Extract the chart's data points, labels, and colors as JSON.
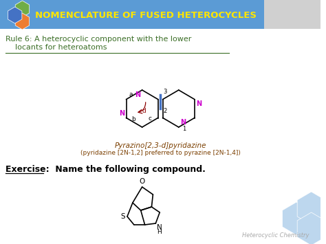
{
  "title": "NOMENCLATURE OF FUSED HETEROCYCLES",
  "title_color": "#FFE600",
  "header_bg": "#5B9BD5",
  "rule_line1": "Rule 6: A heterocyclic component with the lower",
  "rule_line2": "    locants for heteroatoms",
  "rule_color": "#3B6E26",
  "chem_name1": "Pyrazino[2,3-d]pyridazine",
  "chem_name2": "(pyridazine [2N-1,2] preferred to pyrazine [2N-1,4])",
  "chem_color": "#7B3F00",
  "exercise_text": "Exercise:  Name the following compound.",
  "footer_text": "Heterocyclic Chemistry",
  "footer_color": "#AAAAAA",
  "bg_color": "#FFFFFF",
  "hex_colors": [
    "#4472C4",
    "#70AD47",
    "#ED7D31"
  ],
  "n_color": "#CC00CC",
  "bond_color": "#000000",
  "fused_bond_color": "#4472C4",
  "arrow_color": "#8B0000",
  "grey_hex_color": "#BDD7EE"
}
